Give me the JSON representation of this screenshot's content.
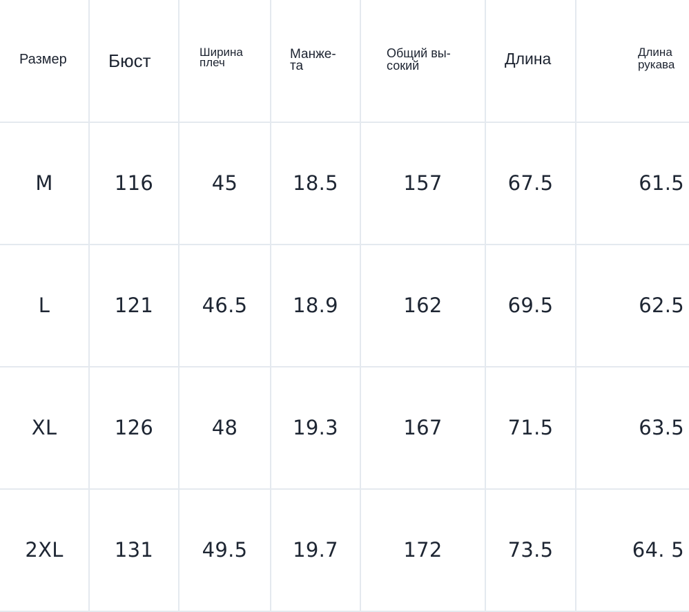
{
  "table": {
    "headers": [
      "Размер",
      "Бюст",
      "Ширина\nплеч",
      "Манже-\nта",
      "Общий вы-\nсокий",
      "Длина",
      "Длина\nрукава"
    ],
    "rows": [
      [
        "M",
        "116",
        "45",
        "18.5",
        "157",
        "67.5",
        "61.5"
      ],
      [
        "L",
        "121",
        "46.5",
        "18.9",
        "162",
        "69.5",
        "62.5"
      ],
      [
        "XL",
        "126",
        "48",
        "19.3",
        "167",
        "71.5",
        "63.5"
      ],
      [
        "2XL",
        "131",
        "49.5",
        "19.7",
        "172",
        "73.5",
        "64. 5"
      ]
    ]
  }
}
